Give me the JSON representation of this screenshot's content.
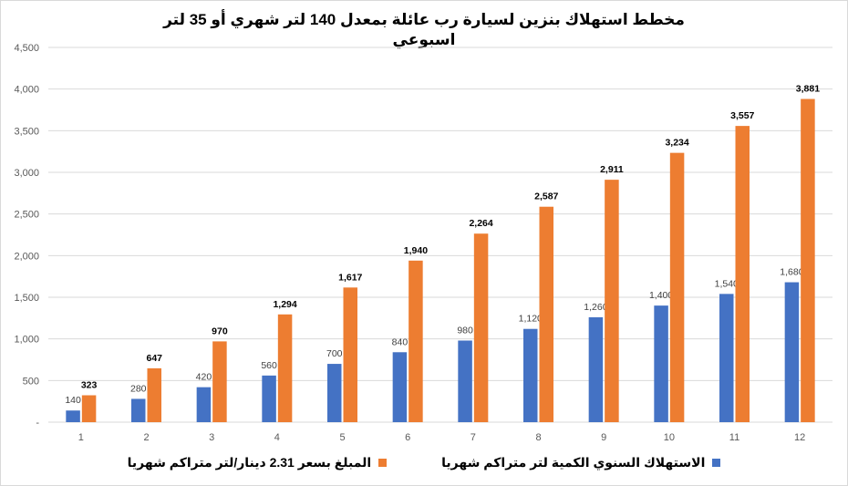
{
  "chart_data": {
    "type": "bar",
    "title": "مخطط استهلاك بنزين لسيارة رب عائلة بمعدل 140 لتر شهري أو 35 لتر اسبوعي",
    "categories": [
      "1",
      "2",
      "3",
      "4",
      "5",
      "6",
      "7",
      "8",
      "9",
      "10",
      "11",
      "12"
    ],
    "series": [
      {
        "name": "الاستهلاك السنوي الكمية لتر متراكم شهريا",
        "color": "#4472c4",
        "values": [
          140,
          280,
          420,
          560,
          700,
          840,
          980,
          1120,
          1260,
          1400,
          1540,
          1680
        ],
        "labels": [
          "140",
          "280",
          "420",
          "560",
          "700",
          "840",
          "980",
          "1,120",
          "1,260",
          "1,400",
          "1,540",
          "1,680"
        ]
      },
      {
        "name": "المبلغ بسعر 2.31 دينار/لتر متراكم شهريا",
        "color": "#ed7d31",
        "values": [
          323,
          647,
          970,
          1294,
          1617,
          1940,
          2264,
          2587,
          2911,
          3234,
          3557,
          3881
        ],
        "labels": [
          "323",
          "647",
          "970",
          "1,294",
          "1,617",
          "1,940",
          "2,264",
          "2,587",
          "2,911",
          "3,234",
          "3,557",
          "3,881"
        ]
      }
    ],
    "ylim": [
      0,
      4500
    ],
    "yticks": [
      "-",
      "500",
      "1,000",
      "1,500",
      "2,000",
      "2,500",
      "3,000",
      "3,500",
      "4,000",
      "4,500"
    ],
    "ytick_values": [
      0,
      500,
      1000,
      1500,
      2000,
      2500,
      3000,
      3500,
      4000,
      4500
    ],
    "grid": true,
    "legend_position": "bottom"
  }
}
